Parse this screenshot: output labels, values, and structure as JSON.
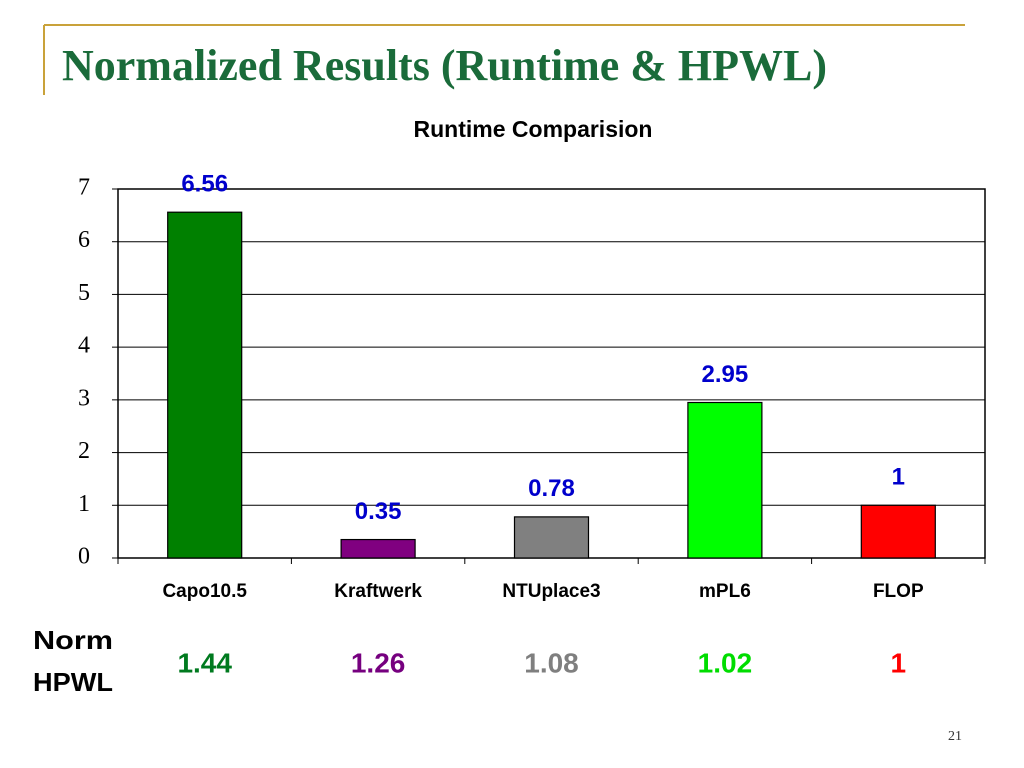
{
  "slide_title": "Normalized Results (Runtime & HPWL)",
  "page_number": "21",
  "chart_data": {
    "type": "bar",
    "title": "Runtime Comparision",
    "categories": [
      "Capo10.5",
      "Kraftwerk",
      "NTUplace3",
      "mPL6",
      "FLOP"
    ],
    "values": [
      6.56,
      0.35,
      0.78,
      2.95,
      1
    ],
    "colors": [
      "#008000",
      "#800080",
      "#808080",
      "#00ff00",
      "#ff0000"
    ],
    "value_label_color": "#0000cc",
    "ylim": [
      0,
      7
    ],
    "yticks": [
      0,
      1,
      2,
      3,
      4,
      5,
      6,
      7
    ],
    "grid": true
  },
  "hpwl": {
    "label_lines": [
      "Norm",
      "HPWL"
    ],
    "values": [
      1.44,
      1.26,
      1.08,
      1.02,
      1
    ],
    "colors": [
      "#007a1f",
      "#76007f",
      "#7f7f7f",
      "#00dd00",
      "#ff0000"
    ]
  }
}
